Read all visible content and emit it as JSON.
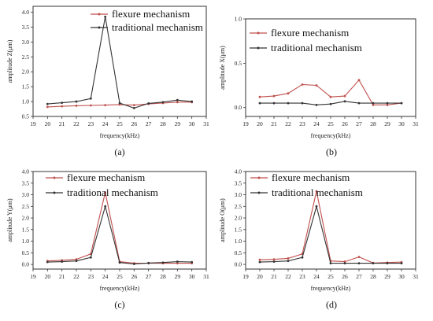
{
  "chart_data": [
    {
      "type": "line",
      "caption": "(a)",
      "xlabel": "frequency(kHz)",
      "ylabel": "amplitude Z(μm)",
      "xlim": [
        19,
        31
      ],
      "xticks": [
        19,
        20,
        21,
        22,
        23,
        24,
        25,
        26,
        27,
        28,
        29,
        30,
        31
      ],
      "ylim": [
        0.5,
        4.2
      ],
      "yticks": [
        "0.5",
        "1.0",
        "1.5",
        "2.0",
        "2.5",
        "3.0",
        "3.5",
        "4.0"
      ],
      "legend_position": "top-right",
      "x": [
        20,
        21,
        22,
        23,
        24,
        25,
        26,
        27,
        28,
        29,
        30
      ],
      "series": [
        {
          "name": "flexure mechanism",
          "color": "#c0504d",
          "values": [
            0.82,
            0.84,
            0.86,
            0.87,
            0.88,
            0.9,
            0.88,
            0.92,
            0.95,
            0.98,
            0.98
          ]
        },
        {
          "name": "traditional mechanism",
          "color": "#333333",
          "values": [
            0.92,
            0.96,
            1.0,
            1.1,
            3.85,
            0.95,
            0.78,
            0.94,
            0.98,
            1.05,
            1.0
          ]
        }
      ]
    },
    {
      "type": "line",
      "caption": "(b)",
      "xlabel": "frequency(kHz)",
      "ylabel": "amplitude X(μm)",
      "xlim": [
        19,
        31
      ],
      "xticks": [
        19,
        20,
        21,
        22,
        23,
        24,
        25,
        26,
        27,
        28,
        29,
        30,
        31
      ],
      "ylim": [
        -0.1,
        1.0
      ],
      "yticks": [
        "0.0",
        "0.5",
        "1.0"
      ],
      "legend_position": "top-right",
      "x": [
        20,
        21,
        22,
        23,
        24,
        25,
        26,
        27,
        28,
        29,
        30
      ],
      "series": [
        {
          "name": "flexure mechanism",
          "color": "#c0504d",
          "values": [
            0.12,
            0.13,
            0.16,
            0.26,
            0.25,
            0.12,
            0.13,
            0.31,
            0.03,
            0.03,
            0.05
          ]
        },
        {
          "name": "traditional mechanism",
          "color": "#333333",
          "values": [
            0.05,
            0.05,
            0.05,
            0.05,
            0.03,
            0.04,
            0.07,
            0.05,
            0.05,
            0.05,
            0.05
          ]
        }
      ]
    },
    {
      "type": "line",
      "caption": "(c)",
      "xlabel": "frequency(kHz)",
      "ylabel": "amplitude Y(μm)",
      "xlim": [
        19,
        31
      ],
      "xticks": [
        19,
        20,
        21,
        22,
        23,
        24,
        25,
        26,
        27,
        28,
        29,
        30,
        31
      ],
      "ylim": [
        -0.2,
        4.0
      ],
      "yticks": [
        "0.0",
        "0.5",
        "1.0",
        "1.5",
        "2.0",
        "2.5",
        "3.0",
        "3.5",
        "4.0"
      ],
      "legend_position": "top-right",
      "x": [
        20,
        21,
        22,
        23,
        24,
        25,
        26,
        27,
        28,
        29,
        30
      ],
      "series": [
        {
          "name": "flexure mechanism",
          "color": "#c0504d",
          "values": [
            0.15,
            0.18,
            0.22,
            0.45,
            3.1,
            0.12,
            0.05,
            0.05,
            0.05,
            0.05,
            0.05
          ]
        },
        {
          "name": "traditional mechanism",
          "color": "#333333",
          "values": [
            0.1,
            0.12,
            0.15,
            0.3,
            2.5,
            0.08,
            0.02,
            0.06,
            0.08,
            0.12,
            0.1
          ]
        }
      ]
    },
    {
      "type": "line",
      "caption": "(d)",
      "xlabel": "frequency(kHz)",
      "ylabel": "amplitude O(μm)",
      "xlim": [
        19,
        31
      ],
      "xticks": [
        19,
        20,
        21,
        22,
        23,
        24,
        25,
        26,
        27,
        28,
        29,
        30,
        31
      ],
      "ylim": [
        -0.2,
        4.0
      ],
      "yticks": [
        "0.0",
        "0.5",
        "1.0",
        "1.5",
        "2.0",
        "2.5",
        "3.0",
        "3.5",
        "4.0"
      ],
      "legend_position": "top-right",
      "x": [
        20,
        21,
        22,
        23,
        24,
        25,
        26,
        27,
        28,
        29,
        30
      ],
      "series": [
        {
          "name": "flexure mechanism",
          "color": "#c0504d",
          "values": [
            0.2,
            0.22,
            0.26,
            0.45,
            3.15,
            0.15,
            0.12,
            0.32,
            0.06,
            0.08,
            0.1
          ]
        },
        {
          "name": "traditional mechanism",
          "color": "#333333",
          "values": [
            0.1,
            0.12,
            0.15,
            0.3,
            2.5,
            0.05,
            0.05,
            0.05,
            0.05,
            0.05,
            0.05
          ]
        }
      ]
    }
  ]
}
